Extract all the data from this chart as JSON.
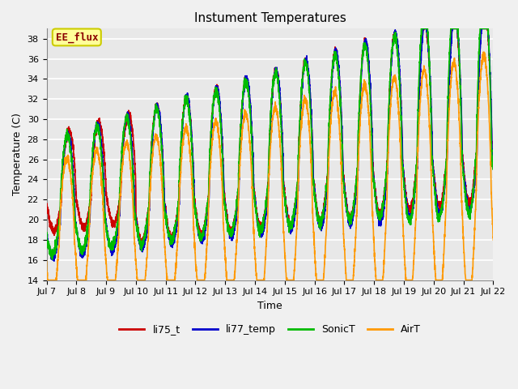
{
  "title": "Instument Temperatures",
  "xlabel": "Time",
  "ylabel": "Temperature (C)",
  "ylim": [
    14,
    39
  ],
  "yticks": [
    14,
    16,
    18,
    20,
    22,
    24,
    26,
    28,
    30,
    32,
    34,
    36,
    38
  ],
  "x_labels": [
    "Jul 7",
    "Jul 8",
    "Jul 9",
    "Jul 10",
    "Jul 11",
    "Jul 12",
    "Jul 13",
    "Jul 14",
    "Jul 15",
    "Jul 16",
    "Jul 17",
    "Jul 18",
    "Jul 19",
    "Jul 20",
    "Jul 21",
    "Jul 22"
  ],
  "series_colors": {
    "li75_t": "#cc0000",
    "li77_temp": "#0000cc",
    "SonicT": "#00bb00",
    "AirT": "#ff9900"
  },
  "annotation_text": "EE_flux",
  "annotation_color": "#8b0000",
  "annotation_bg": "#ffff99",
  "annotation_border": "#cccc00",
  "plot_bg_color": "#e8e8e8",
  "fig_bg_color": "#f0f0f0",
  "grid_color": "#ffffff",
  "title_fontsize": 11,
  "axis_label_fontsize": 9,
  "tick_fontsize": 8,
  "legend_fontsize": 9,
  "linewidth": 1.2
}
